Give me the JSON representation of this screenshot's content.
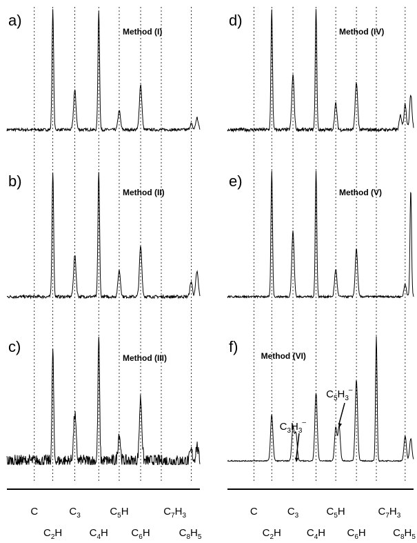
{
  "chart_data": [
    {
      "type": "line",
      "panel": "a)",
      "annotation": "Method (I)",
      "noise": 0.012,
      "tail": [
        [
          0.955,
          0.05
        ],
        [
          0.985,
          0.1
        ]
      ],
      "peaks": [
        [
          0.238,
          1.0
        ],
        [
          0.352,
          0.33
        ],
        [
          0.476,
          1.0
        ],
        [
          0.582,
          0.16
        ],
        [
          0.693,
          0.38
        ]
      ]
    },
    {
      "type": "line",
      "panel": "b)",
      "annotation": "Method (II)",
      "noise": 0.012,
      "tail": [
        [
          0.955,
          0.12
        ],
        [
          0.985,
          0.2
        ]
      ],
      "peaks": [
        [
          0.238,
          1.0
        ],
        [
          0.352,
          0.33
        ],
        [
          0.476,
          1.0
        ],
        [
          0.582,
          0.21
        ],
        [
          0.693,
          0.4
        ]
      ]
    },
    {
      "type": "line",
      "panel": "c)",
      "annotation": "Method (III)",
      "noise": 0.05,
      "tail": [
        [
          0.955,
          0.08
        ],
        [
          0.985,
          0.12
        ]
      ],
      "peaks": [
        [
          0.238,
          0.9
        ],
        [
          0.352,
          0.38
        ],
        [
          0.476,
          1.0
        ],
        [
          0.582,
          0.22
        ],
        [
          0.693,
          0.51
        ]
      ]
    },
    {
      "type": "line",
      "panel": "d)",
      "annotation": "Method (IV)",
      "noise": 0.014,
      "tail": [
        [
          0.93,
          0.12
        ],
        [
          0.955,
          0.22
        ],
        [
          0.985,
          0.3
        ]
      ],
      "peaks": [
        [
          0.238,
          1.0
        ],
        [
          0.352,
          0.46
        ],
        [
          0.476,
          1.0
        ],
        [
          0.582,
          0.22
        ],
        [
          0.693,
          0.4
        ]
      ]
    },
    {
      "type": "line",
      "panel": "e)",
      "annotation": "Method (V)",
      "noise": 0.008,
      "tail": [
        [
          0.955,
          0.1
        ],
        [
          0.985,
          0.85
        ]
      ],
      "peaks": [
        [
          0.238,
          1.0
        ],
        [
          0.352,
          0.52
        ],
        [
          0.476,
          1.0
        ],
        [
          0.582,
          0.22
        ],
        [
          0.693,
          0.38
        ]
      ]
    },
    {
      "type": "line",
      "panel": "f)",
      "annotation": "Method (VI)",
      "noise": 0.004,
      "tail": [
        [
          0.955,
          0.2
        ],
        [
          0.985,
          0.18
        ]
      ],
      "peaks": [
        [
          0.238,
          0.37
        ],
        [
          0.352,
          0.27
        ],
        [
          0.476,
          0.55
        ],
        [
          0.582,
          0.27
        ],
        [
          0.693,
          0.65
        ],
        [
          0.8,
          1.0
        ]
      ],
      "extra_peaks": [
        [
          0.368,
          0.22
        ],
        [
          0.6,
          0.28
        ]
      ],
      "callouts": [
        {
          "base": "C",
          "n1": "3",
          "h": "H",
          "n2": "3",
          "charge": "–"
        },
        {
          "base": "C",
          "n1": "5",
          "h": "H",
          "n2": "3",
          "charge": "–"
        }
      ]
    }
  ],
  "x_axis": {
    "tick_labels": [
      {
        "base": "C",
        "sub": "",
        "row": 0
      },
      {
        "base": "C",
        "sub": "2",
        "h": "H",
        "row": 1
      },
      {
        "base": "C",
        "sub": "3",
        "row": 0
      },
      {
        "base": "C",
        "sub": "4",
        "h": "H",
        "row": 1
      },
      {
        "base": "C",
        "sub": "5",
        "h": "H",
        "row": 0
      },
      {
        "base": "C",
        "sub": "6",
        "h": "H",
        "row": 1
      },
      {
        "base": "C",
        "sub": "7",
        "h": "H",
        "sub2": "3",
        "row": 0
      },
      {
        "base": "C",
        "sub": "8",
        "h": "H",
        "sub2": "5",
        "row": 1
      }
    ]
  },
  "colors": {
    "line": "#000000",
    "guides": "#000000"
  }
}
